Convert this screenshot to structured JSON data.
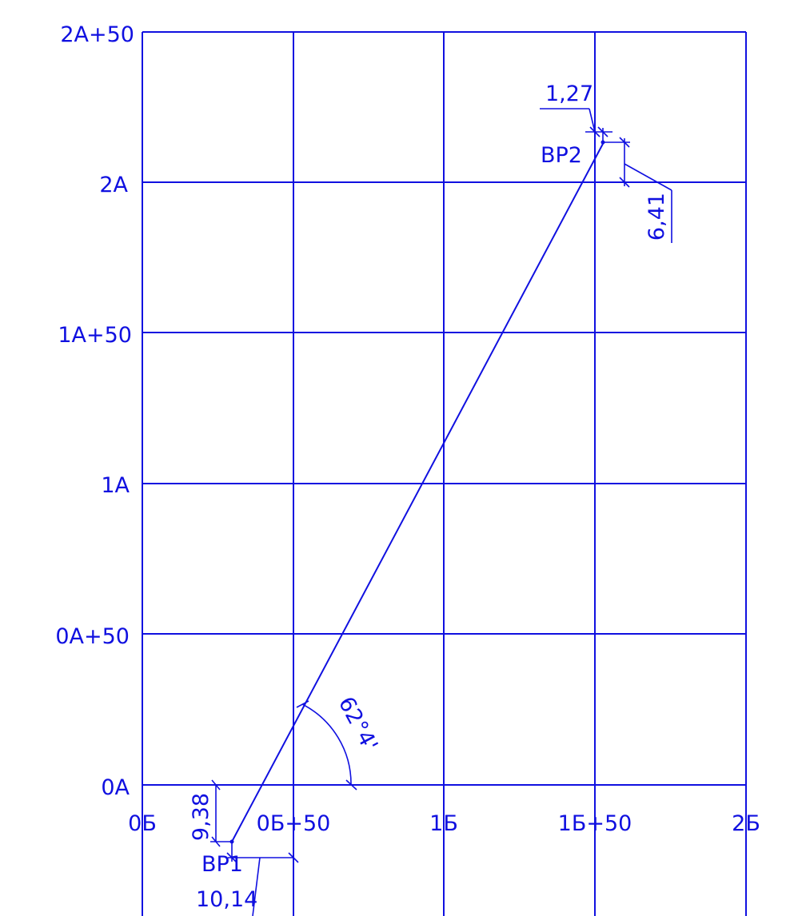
{
  "color": "#1010e0",
  "grid": {
    "y_labels": [
      "2A+50",
      "2A",
      "1A+50",
      "1A",
      "0A+50",
      "0A"
    ],
    "x_labels": [
      "0Б",
      "0Б+50",
      "1Б",
      "1Б+50",
      "2Б"
    ]
  },
  "points": {
    "bp1": "ВР1",
    "bp2": "ВР2"
  },
  "dimensions": {
    "bp1_vertical": "9,38",
    "bp1_horizontal": "10,14",
    "bp2_horizontal": "1,27",
    "bp2_vertical": "6,41",
    "angle": "62°4'"
  }
}
